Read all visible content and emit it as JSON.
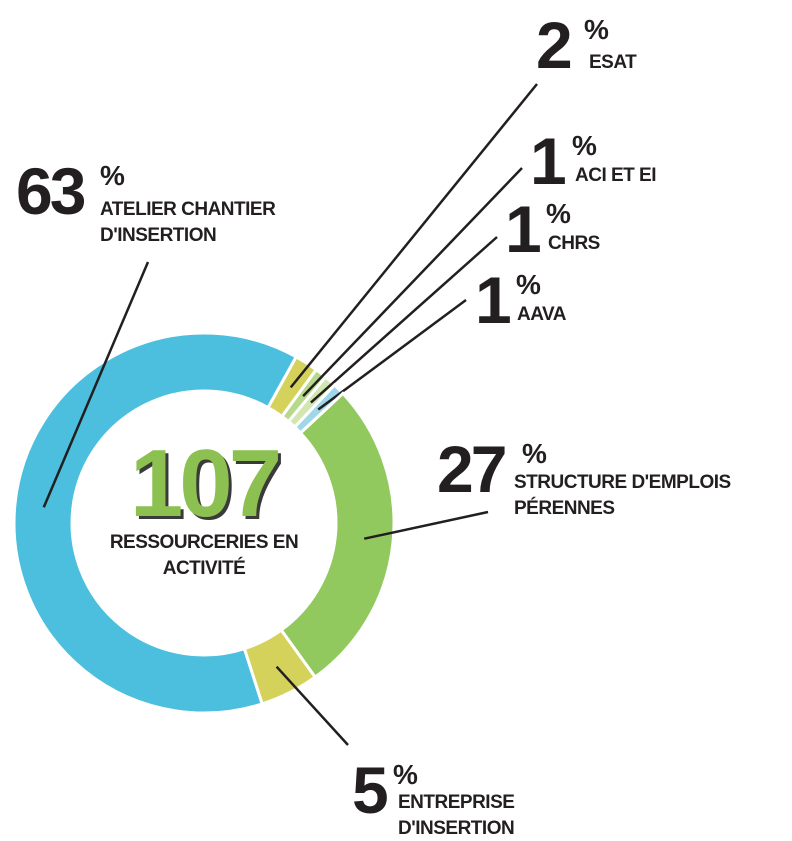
{
  "chart_data": {
    "type": "donut",
    "categories": [
      "ESAT",
      "ACI ET EI",
      "CHRS",
      "AAVA",
      "STRUCTURE D'EMPLOIS PÉRENNES",
      "ENTREPRISE D'INSERTION",
      "ATELIER CHANTIER D'INSERTION"
    ],
    "values": [
      2,
      1,
      1,
      1,
      27,
      5,
      63
    ],
    "colors": [
      "#d5d25c",
      "#b6d98c",
      "#d2e6b0",
      "#9fd7ea",
      "#92c95e",
      "#d5d25c",
      "#4bbfdd"
    ],
    "unit": "%",
    "center_value": 107,
    "center_label": "RESSOURCERIES EN ACTIVITÉ"
  }
}
